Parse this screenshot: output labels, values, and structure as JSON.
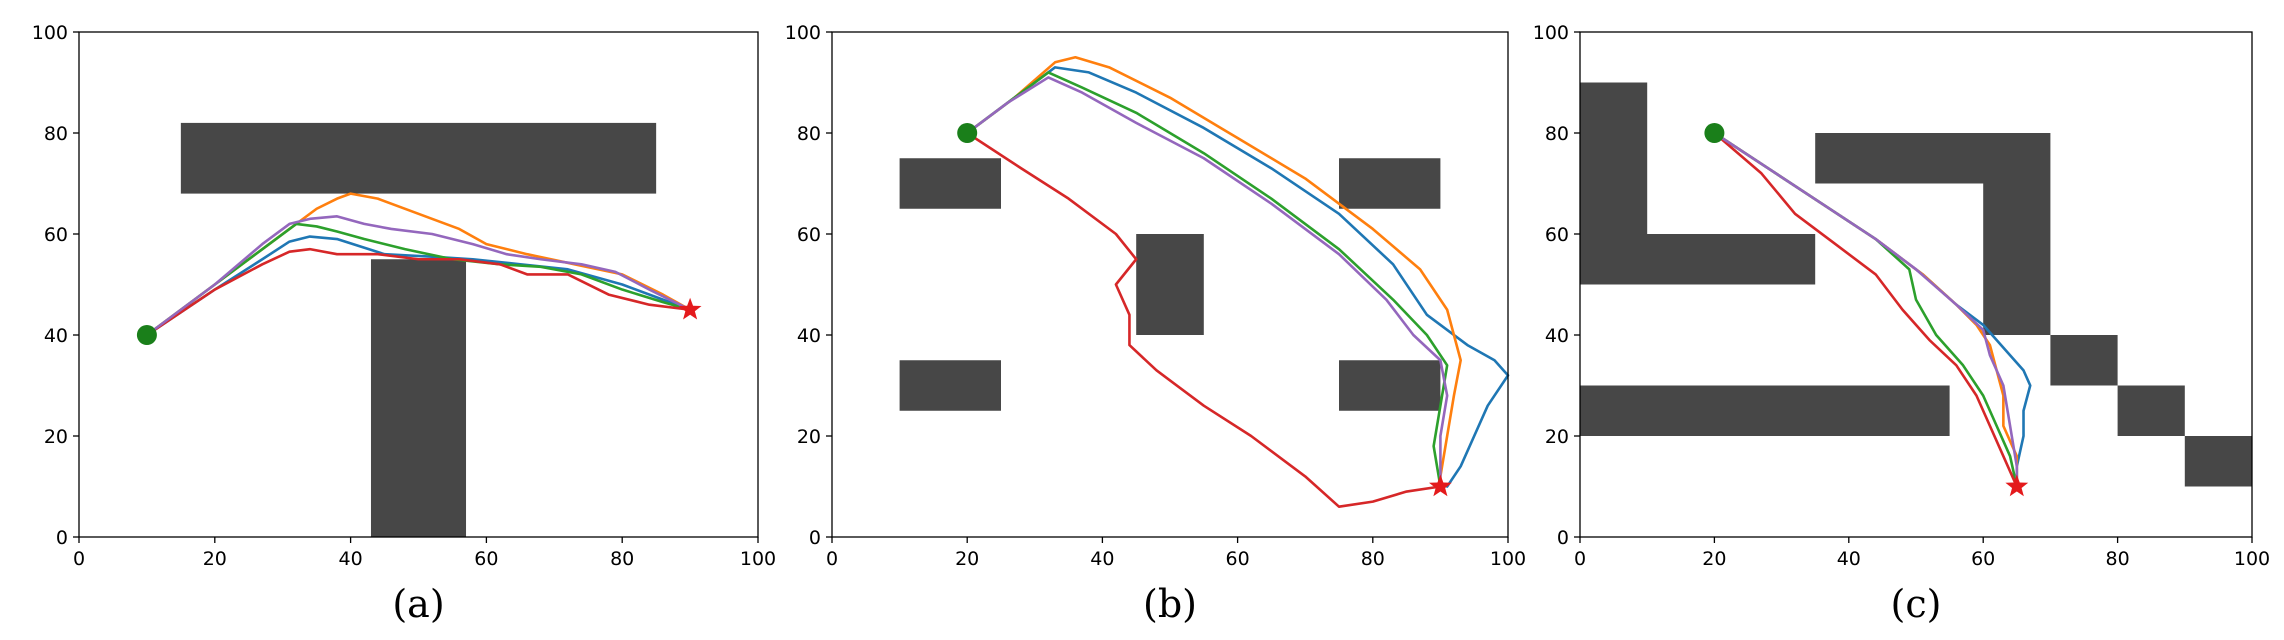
{
  "colors": {
    "obstacle": "#474747",
    "start": "#1a7f1a",
    "goal": "#e41a1c",
    "series": [
      "#1f77b4",
      "#ff7f0e",
      "#2ca02c",
      "#d62728",
      "#9467bd"
    ]
  },
  "chart_data": [
    {
      "type": "line",
      "label": "(a)",
      "xlim": [
        0,
        100
      ],
      "ylim": [
        0,
        100
      ],
      "xticks": [
        0,
        20,
        40,
        60,
        80,
        100
      ],
      "yticks": [
        0,
        20,
        40,
        60,
        80,
        100
      ],
      "grid": false,
      "obstacles": [
        {
          "x0": 15,
          "y0": 68,
          "x1": 85,
          "y1": 82
        },
        {
          "x0": 43,
          "y0": 0,
          "x1": 57,
          "y1": 55
        }
      ],
      "start": [
        10,
        40
      ],
      "goal": [
        90,
        45
      ],
      "series": [
        {
          "points": [
            [
              10,
              40
            ],
            [
              20,
              49
            ],
            [
              27,
              55
            ],
            [
              31,
              58.5
            ],
            [
              34,
              59.5
            ],
            [
              38,
              59
            ],
            [
              45,
              56
            ],
            [
              52,
              55.5
            ],
            [
              58,
              55
            ],
            [
              65,
              54
            ],
            [
              72,
              53
            ],
            [
              80,
              50
            ],
            [
              86,
              47
            ],
            [
              90,
              45
            ]
          ]
        },
        {
          "points": [
            [
              10,
              40
            ],
            [
              20,
              50
            ],
            [
              27,
              57
            ],
            [
              31,
              61
            ],
            [
              35,
              65
            ],
            [
              38,
              67
            ],
            [
              40,
              68
            ],
            [
              44,
              67
            ],
            [
              50,
              64
            ],
            [
              56,
              61
            ],
            [
              60,
              58
            ],
            [
              66,
              56
            ],
            [
              73,
              54
            ],
            [
              80,
              52
            ],
            [
              86,
              48
            ],
            [
              90,
              45
            ]
          ]
        },
        {
          "points": [
            [
              10,
              40
            ],
            [
              20,
              50
            ],
            [
              27,
              57
            ],
            [
              32,
              62
            ],
            [
              35,
              61.5
            ],
            [
              38,
              60.5
            ],
            [
              42,
              59
            ],
            [
              48,
              57
            ],
            [
              55,
              55
            ],
            [
              62,
              54
            ],
            [
              68,
              53.5
            ],
            [
              74,
              52
            ],
            [
              80,
              49
            ],
            [
              86,
              46.5
            ],
            [
              90,
              45
            ]
          ]
        },
        {
          "points": [
            [
              10,
              40
            ],
            [
              20,
              49
            ],
            [
              27,
              54
            ],
            [
              31,
              56.5
            ],
            [
              34,
              57
            ],
            [
              38,
              56
            ],
            [
              44,
              56
            ],
            [
              50,
              55
            ],
            [
              56,
              55
            ],
            [
              62,
              54
            ],
            [
              66,
              52
            ],
            [
              72,
              52
            ],
            [
              78,
              48
            ],
            [
              84,
              46
            ],
            [
              90,
              45
            ]
          ]
        },
        {
          "points": [
            [
              10,
              40
            ],
            [
              20,
              50
            ],
            [
              27,
              58
            ],
            [
              31,
              62
            ],
            [
              34,
              63
            ],
            [
              38,
              63.5
            ],
            [
              42,
              62
            ],
            [
              46,
              61
            ],
            [
              52,
              60
            ],
            [
              58,
              58
            ],
            [
              63,
              56
            ],
            [
              68,
              55
            ],
            [
              74,
              54
            ],
            [
              79,
              52.5
            ],
            [
              84,
              49
            ],
            [
              90,
              45
            ]
          ]
        }
      ]
    },
    {
      "type": "line",
      "label": "(b)",
      "xlim": [
        0,
        100
      ],
      "ylim": [
        0,
        100
      ],
      "xticks": [
        0,
        20,
        40,
        60,
        80,
        100
      ],
      "yticks": [
        0,
        20,
        40,
        60,
        80,
        100
      ],
      "grid": false,
      "obstacles": [
        {
          "x0": 10,
          "y0": 65,
          "x1": 25,
          "y1": 75
        },
        {
          "x0": 10,
          "y0": 25,
          "x1": 25,
          "y1": 35
        },
        {
          "x0": 45,
          "y0": 40,
          "x1": 55,
          "y1": 60
        },
        {
          "x0": 75,
          "y0": 65,
          "x1": 90,
          "y1": 75
        },
        {
          "x0": 75,
          "y0": 25,
          "x1": 90,
          "y1": 35
        }
      ],
      "start": [
        20,
        80
      ],
      "goal": [
        90,
        10
      ],
      "series": [
        {
          "points": [
            [
              20,
              80
            ],
            [
              26,
              86
            ],
            [
              33,
              93
            ],
            [
              38,
              92
            ],
            [
              45,
              88
            ],
            [
              55,
              81
            ],
            [
              65,
              73
            ],
            [
              75,
              64
            ],
            [
              83,
              54
            ],
            [
              88,
              44
            ],
            [
              94,
              38
            ],
            [
              98,
              35
            ],
            [
              100,
              32
            ],
            [
              97,
              26
            ],
            [
              95,
              20
            ],
            [
              93,
              14
            ],
            [
              91,
              10
            ]
          ]
        },
        {
          "points": [
            [
              20,
              80
            ],
            [
              27,
              87
            ],
            [
              33,
              94
            ],
            [
              36,
              95
            ],
            [
              41,
              93
            ],
            [
              50,
              87
            ],
            [
              60,
              79
            ],
            [
              70,
              71
            ],
            [
              80,
              61
            ],
            [
              87,
              53
            ],
            [
              91,
              45
            ],
            [
              93,
              35
            ],
            [
              92,
              28
            ],
            [
              91,
              20
            ],
            [
              90,
              12
            ],
            [
              90,
              10
            ]
          ]
        },
        {
          "points": [
            [
              20,
              80
            ],
            [
              26,
              86
            ],
            [
              32,
              92
            ],
            [
              37,
              89
            ],
            [
              45,
              84
            ],
            [
              55,
              76
            ],
            [
              65,
              67
            ],
            [
              75,
              57
            ],
            [
              83,
              47
            ],
            [
              88,
              40
            ],
            [
              91,
              34
            ],
            [
              90,
              26
            ],
            [
              89,
              18
            ],
            [
              90,
              10
            ]
          ]
        },
        {
          "points": [
            [
              20,
              80
            ],
            [
              28,
              73
            ],
            [
              35,
              67
            ],
            [
              42,
              60
            ],
            [
              45,
              55
            ],
            [
              42,
              50
            ],
            [
              44,
              44
            ],
            [
              44,
              38
            ],
            [
              48,
              33
            ],
            [
              55,
              26
            ],
            [
              62,
              20
            ],
            [
              70,
              12
            ],
            [
              75,
              6
            ],
            [
              80,
              7
            ],
            [
              85,
              9
            ],
            [
              90,
              10
            ]
          ]
        },
        {
          "points": [
            [
              20,
              80
            ],
            [
              26,
              86
            ],
            [
              32,
              91
            ],
            [
              37,
              88
            ],
            [
              45,
              82
            ],
            [
              55,
              75
            ],
            [
              65,
              66
            ],
            [
              75,
              56
            ],
            [
              82,
              47
            ],
            [
              86,
              40
            ],
            [
              90,
              35
            ],
            [
              91,
              28
            ],
            [
              90,
              20
            ],
            [
              90,
              10
            ]
          ]
        }
      ]
    },
    {
      "type": "line",
      "label": "(c)",
      "xlim": [
        0,
        100
      ],
      "ylim": [
        0,
        100
      ],
      "xticks": [
        0,
        20,
        40,
        60,
        80,
        100
      ],
      "yticks": [
        0,
        20,
        40,
        60,
        80,
        100
      ],
      "grid": false,
      "obstacles": [
        {
          "x0": 0,
          "y0": 60,
          "x1": 10,
          "y1": 90
        },
        {
          "x0": 0,
          "y0": 50,
          "x1": 35,
          "y1": 60
        },
        {
          "x0": 35,
          "y0": 70,
          "x1": 70,
          "y1": 80
        },
        {
          "x0": 60,
          "y0": 40,
          "x1": 70,
          "y1": 70
        },
        {
          "x0": 70,
          "y0": 30,
          "x1": 80,
          "y1": 40
        },
        {
          "x0": 80,
          "y0": 20,
          "x1": 90,
          "y1": 30
        },
        {
          "x0": 90,
          "y0": 10,
          "x1": 100,
          "y1": 20
        },
        {
          "x0": 0,
          "y0": 20,
          "x1": 55,
          "y1": 30
        }
      ],
      "start": [
        20,
        80
      ],
      "goal": [
        65,
        10
      ],
      "series": [
        {
          "points": [
            [
              20,
              80
            ],
            [
              28,
              73
            ],
            [
              36,
              66
            ],
            [
              44,
              59
            ],
            [
              51,
              52
            ],
            [
              56,
              46
            ],
            [
              60,
              42
            ],
            [
              64,
              36
            ],
            [
              66,
              33
            ],
            [
              67,
              30
            ],
            [
              66,
              25
            ],
            [
              66,
              20
            ],
            [
              65,
              14
            ],
            [
              65,
              10
            ]
          ]
        },
        {
          "points": [
            [
              20,
              80
            ],
            [
              28,
              73
            ],
            [
              36,
              66
            ],
            [
              44,
              59
            ],
            [
              51,
              52
            ],
            [
              56,
              46
            ],
            [
              59,
              42
            ],
            [
              61,
              38
            ],
            [
              62,
              33
            ],
            [
              63,
              28
            ],
            [
              63,
              22
            ],
            [
              65,
              16
            ],
            [
              65,
              10
            ]
          ]
        },
        {
          "points": [
            [
              20,
              80
            ],
            [
              28,
              73
            ],
            [
              36,
              66
            ],
            [
              44,
              59
            ],
            [
              49,
              53
            ],
            [
              50,
              47
            ],
            [
              53,
              40
            ],
            [
              57,
              34
            ],
            [
              60,
              28
            ],
            [
              62,
              22
            ],
            [
              64,
              16
            ],
            [
              65,
              10
            ]
          ]
        },
        {
          "points": [
            [
              20,
              80
            ],
            [
              27,
              72
            ],
            [
              32,
              64
            ],
            [
              38,
              58
            ],
            [
              44,
              52
            ],
            [
              48,
              45
            ],
            [
              52,
              39
            ],
            [
              56,
              34
            ],
            [
              59,
              28
            ],
            [
              61,
              22
            ],
            [
              63,
              16
            ],
            [
              65,
              10
            ]
          ]
        },
        {
          "points": [
            [
              20,
              80
            ],
            [
              28,
              73
            ],
            [
              36,
              66
            ],
            [
              44,
              59
            ],
            [
              50,
              53
            ],
            [
              56,
              46
            ],
            [
              60,
              41
            ],
            [
              61,
              36
            ],
            [
              63,
              30
            ],
            [
              64,
              22
            ],
            [
              65,
              14
            ],
            [
              65,
              10
            ]
          ]
        }
      ]
    }
  ]
}
